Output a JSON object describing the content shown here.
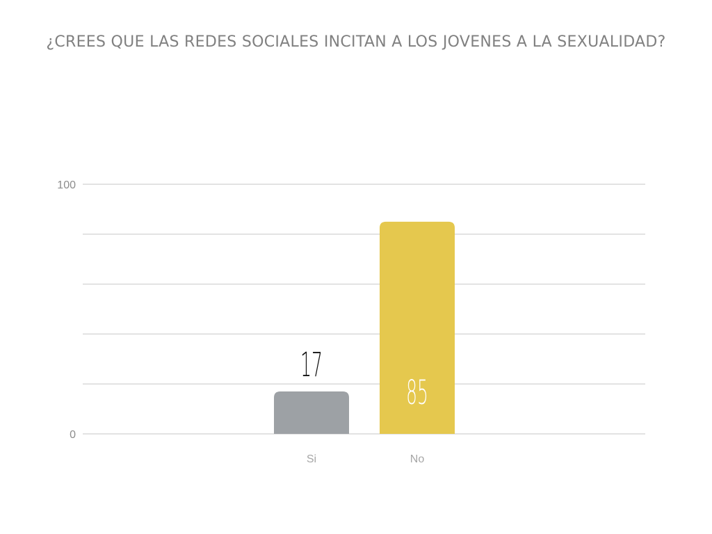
{
  "chart_data": {
    "type": "bar",
    "title": "¿CREES QUE LAS REDES SOCIALES INCITAN A LOS JOVENES A LA SEXUALIDAD?",
    "categories": [
      "Si",
      "No"
    ],
    "values": [
      17,
      85
    ],
    "colors": [
      "#9da1a5",
      "#e5c84e"
    ],
    "value_label_colors": [
      "#111111",
      "#ffffff"
    ],
    "value_label_position": [
      "above",
      "inside"
    ],
    "ylim": [
      0,
      100
    ],
    "y_tick_labels": [
      "0",
      "100"
    ],
    "gridline_values": [
      0,
      20,
      40,
      60,
      80,
      100
    ],
    "grid": true,
    "legend": "none",
    "xlabel": "",
    "ylabel": ""
  }
}
